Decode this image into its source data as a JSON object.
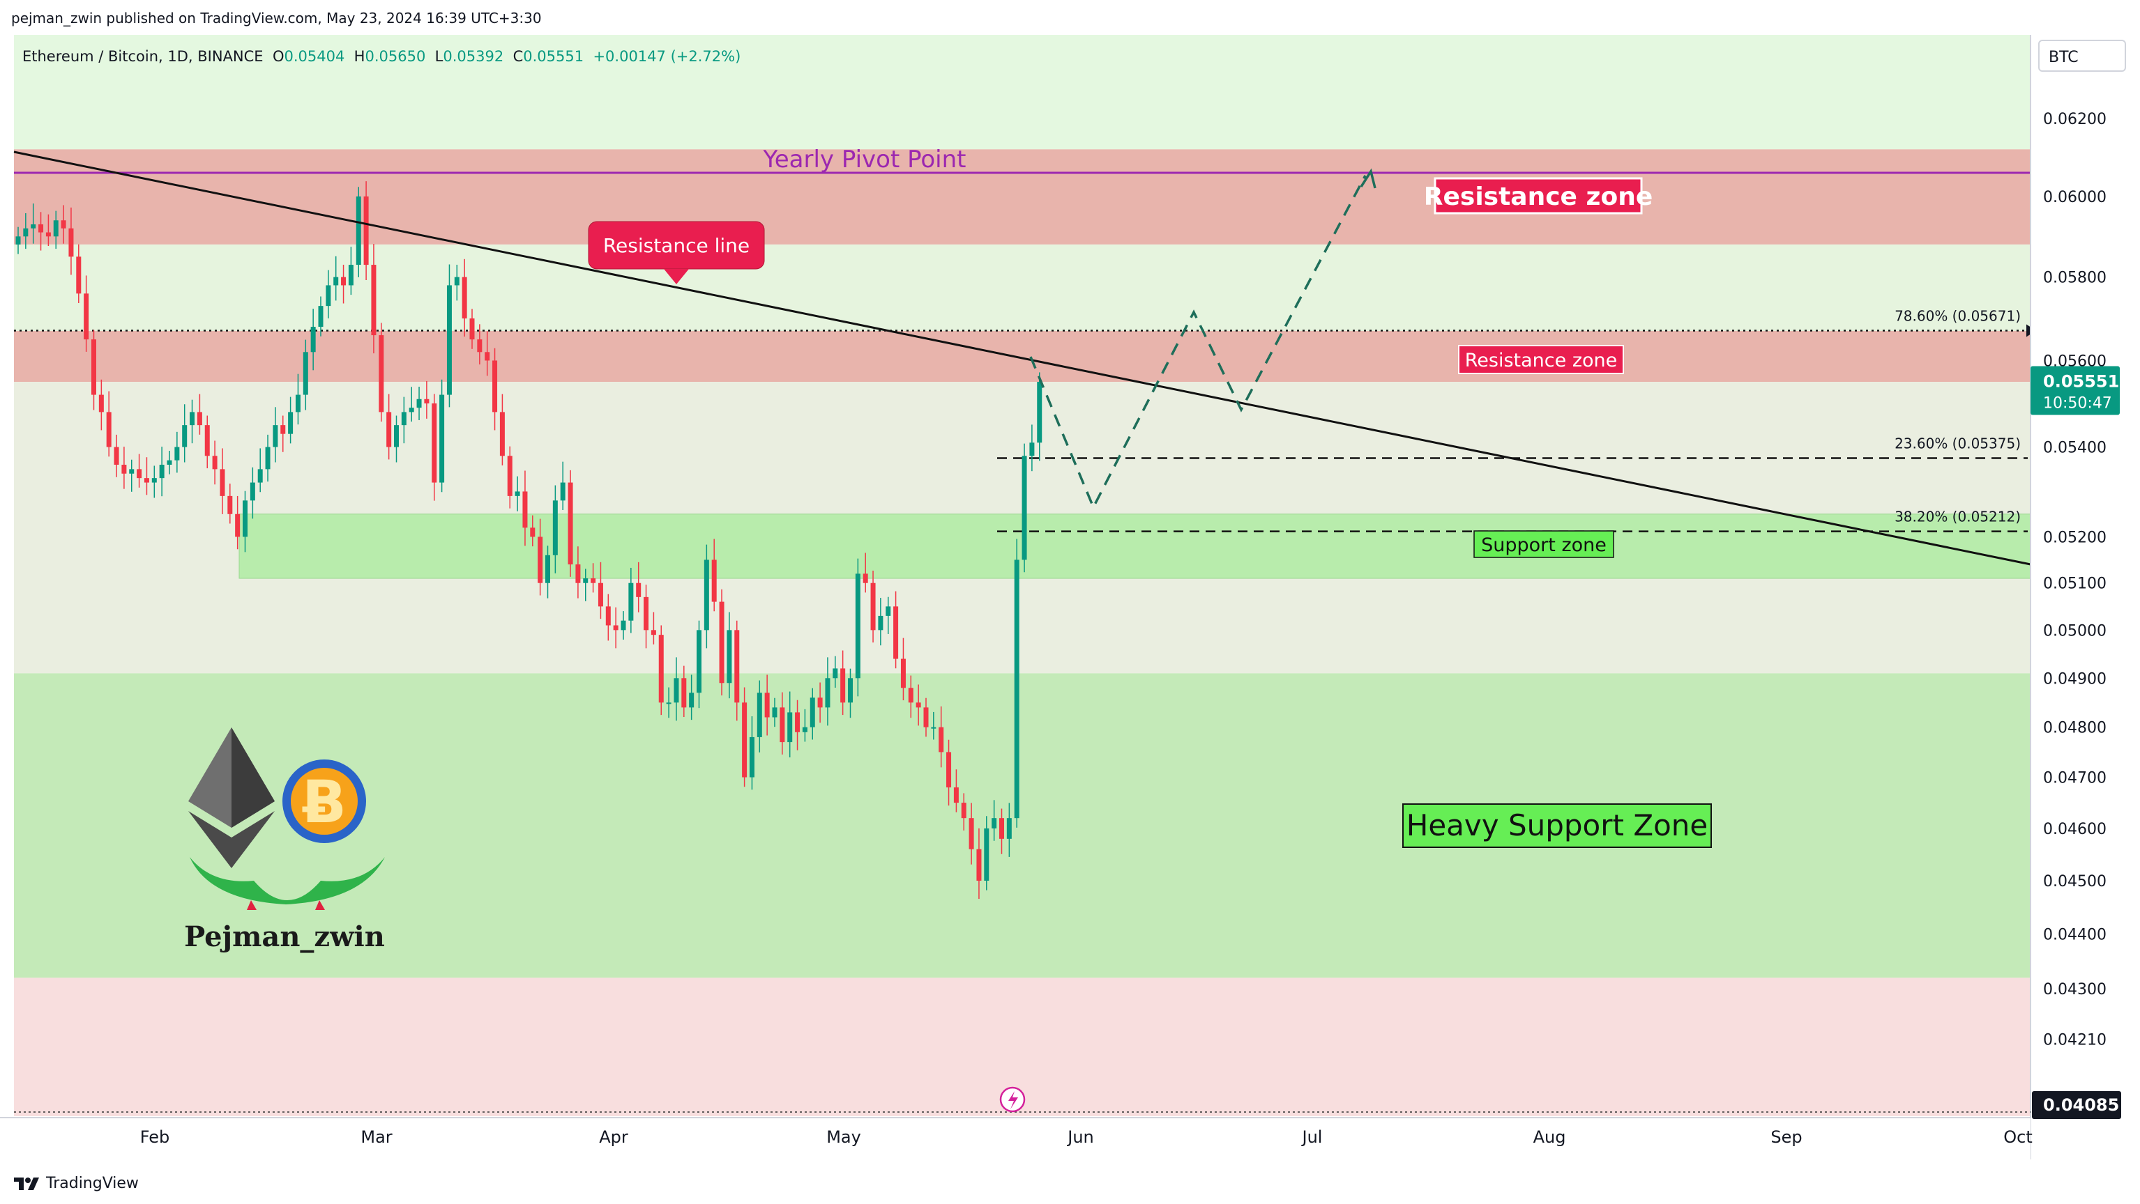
{
  "header": {
    "publish_line": "pejman_zwin published on TradingView.com, May 23, 2024 16:39 UTC+3:30"
  },
  "legend": {
    "symbol": "Ethereum / Bitcoin, 1D, BINANCE",
    "o_label": "O",
    "o_value": "0.05404",
    "h_label": "H",
    "h_value": "0.05650",
    "l_label": "L",
    "l_value": "0.05392",
    "c_label": "C",
    "c_value": "0.05551",
    "change": "+0.00147 (+2.72%)"
  },
  "price_axis": {
    "currency": "BTC",
    "current_price": "0.05551",
    "countdown": "10:50:47",
    "bottom_marker": "0.04085"
  },
  "annotations": {
    "pivot": "Yearly Pivot Point",
    "resistance_line": "Resistance line",
    "resistance_upper": "Resistance zone",
    "resistance_lower": "Resistance zone",
    "support_zone": "Support zone",
    "heavy_support": "Heavy Support Zone",
    "fib_786": "78.60% (0.05671)",
    "fib_236": "23.60% (0.05375)",
    "fib_382": "38.20% (0.05212)",
    "watermark_name": "Pejman_zwin"
  },
  "footer": {
    "brand": "TradingView"
  },
  "colors": {
    "up": "#089981",
    "down": "#f23645",
    "resistance_zone": "#e8b4ac",
    "support_zone": "#b8ecac",
    "heavy_support": "#c4eab8",
    "upper_bg": "#e4f8e0",
    "lower_bg": "#f8dede",
    "pivot_line": "#9c27b0",
    "label_red": "#e91e4f",
    "label_green": "#66ee55",
    "projection": "#1e6e5a"
  },
  "chart_data": {
    "type": "candlestick",
    "symbol": "ETHBTC",
    "interval": "1D",
    "exchange": "BINANCE",
    "y_axis": {
      "ticks": [
        "0.06200",
        "0.06000",
        "0.05800",
        "0.05600",
        "0.05400",
        "0.05200",
        "0.05100",
        "0.05000",
        "0.04900",
        "0.04800",
        "0.04700",
        "0.04600",
        "0.04500",
        "0.04400",
        "0.04300",
        "0.04210"
      ],
      "scale": "log"
    },
    "x_axis": {
      "ticks": [
        "Feb",
        "Mar",
        "Apr",
        "May",
        "Jun",
        "Jul",
        "Aug",
        "Sep",
        "Oct"
      ]
    },
    "zones": [
      {
        "name": "Resistance zone (upper)",
        "from": 0.0588,
        "to": 0.0612
      },
      {
        "name": "Resistance zone (lower)",
        "from": 0.0555,
        "to": 0.0567
      },
      {
        "name": "Support zone",
        "from": 0.0511,
        "to": 0.0525
      },
      {
        "name": "Heavy Support Zone",
        "from": 0.0432,
        "to": 0.0491
      }
    ],
    "pivot_level": 0.0606,
    "fib_levels": [
      {
        "label": "78.60%",
        "value": 0.05671
      },
      {
        "label": "23.60%",
        "value": 0.05375
      },
      {
        "label": "38.20%",
        "value": 0.05212
      }
    ],
    "closes": [
      0.059,
      0.0592,
      0.0593,
      0.0591,
      0.059,
      0.0594,
      0.0592,
      0.0585,
      0.0576,
      0.0565,
      0.0552,
      0.0548,
      0.054,
      0.0536,
      0.0534,
      0.0535,
      0.0533,
      0.0532,
      0.0533,
      0.0536,
      0.0537,
      0.054,
      0.0545,
      0.0548,
      0.0545,
      0.0538,
      0.0535,
      0.0529,
      0.0525,
      0.052,
      0.0528,
      0.0532,
      0.0535,
      0.054,
      0.0545,
      0.0543,
      0.0548,
      0.0552,
      0.0562,
      0.0568,
      0.0573,
      0.0578,
      0.058,
      0.0578,
      0.0583,
      0.06,
      0.0583,
      0.0566,
      0.0548,
      0.054,
      0.0545,
      0.0548,
      0.0549,
      0.0551,
      0.055,
      0.0532,
      0.0552,
      0.0578,
      0.058,
      0.057,
      0.0565,
      0.0562,
      0.056,
      0.0548,
      0.0538,
      0.0529,
      0.053,
      0.0522,
      0.052,
      0.051,
      0.0516,
      0.0528,
      0.0532,
      0.0514,
      0.051,
      0.0511,
      0.051,
      0.0505,
      0.0501,
      0.05,
      0.0502,
      0.051,
      0.0507,
      0.05,
      0.0499,
      0.0485,
      0.0485,
      0.049,
      0.0484,
      0.0487,
      0.05,
      0.0515,
      0.0506,
      0.0489,
      0.05,
      0.0485,
      0.047,
      0.0478,
      0.0487,
      0.0482,
      0.0484,
      0.0477,
      0.0483,
      0.0479,
      0.048,
      0.0486,
      0.0484,
      0.049,
      0.0492,
      0.0485,
      0.049,
      0.0512,
      0.051,
      0.05,
      0.0503,
      0.0505,
      0.0494,
      0.0488,
      0.0485,
      0.0484,
      0.048,
      0.048,
      0.0475,
      0.0468,
      0.0465,
      0.0462,
      0.0456,
      0.045,
      0.046,
      0.0462,
      0.0458,
      0.0462,
      0.0515,
      0.0538,
      0.0541,
      0.0555
    ]
  }
}
